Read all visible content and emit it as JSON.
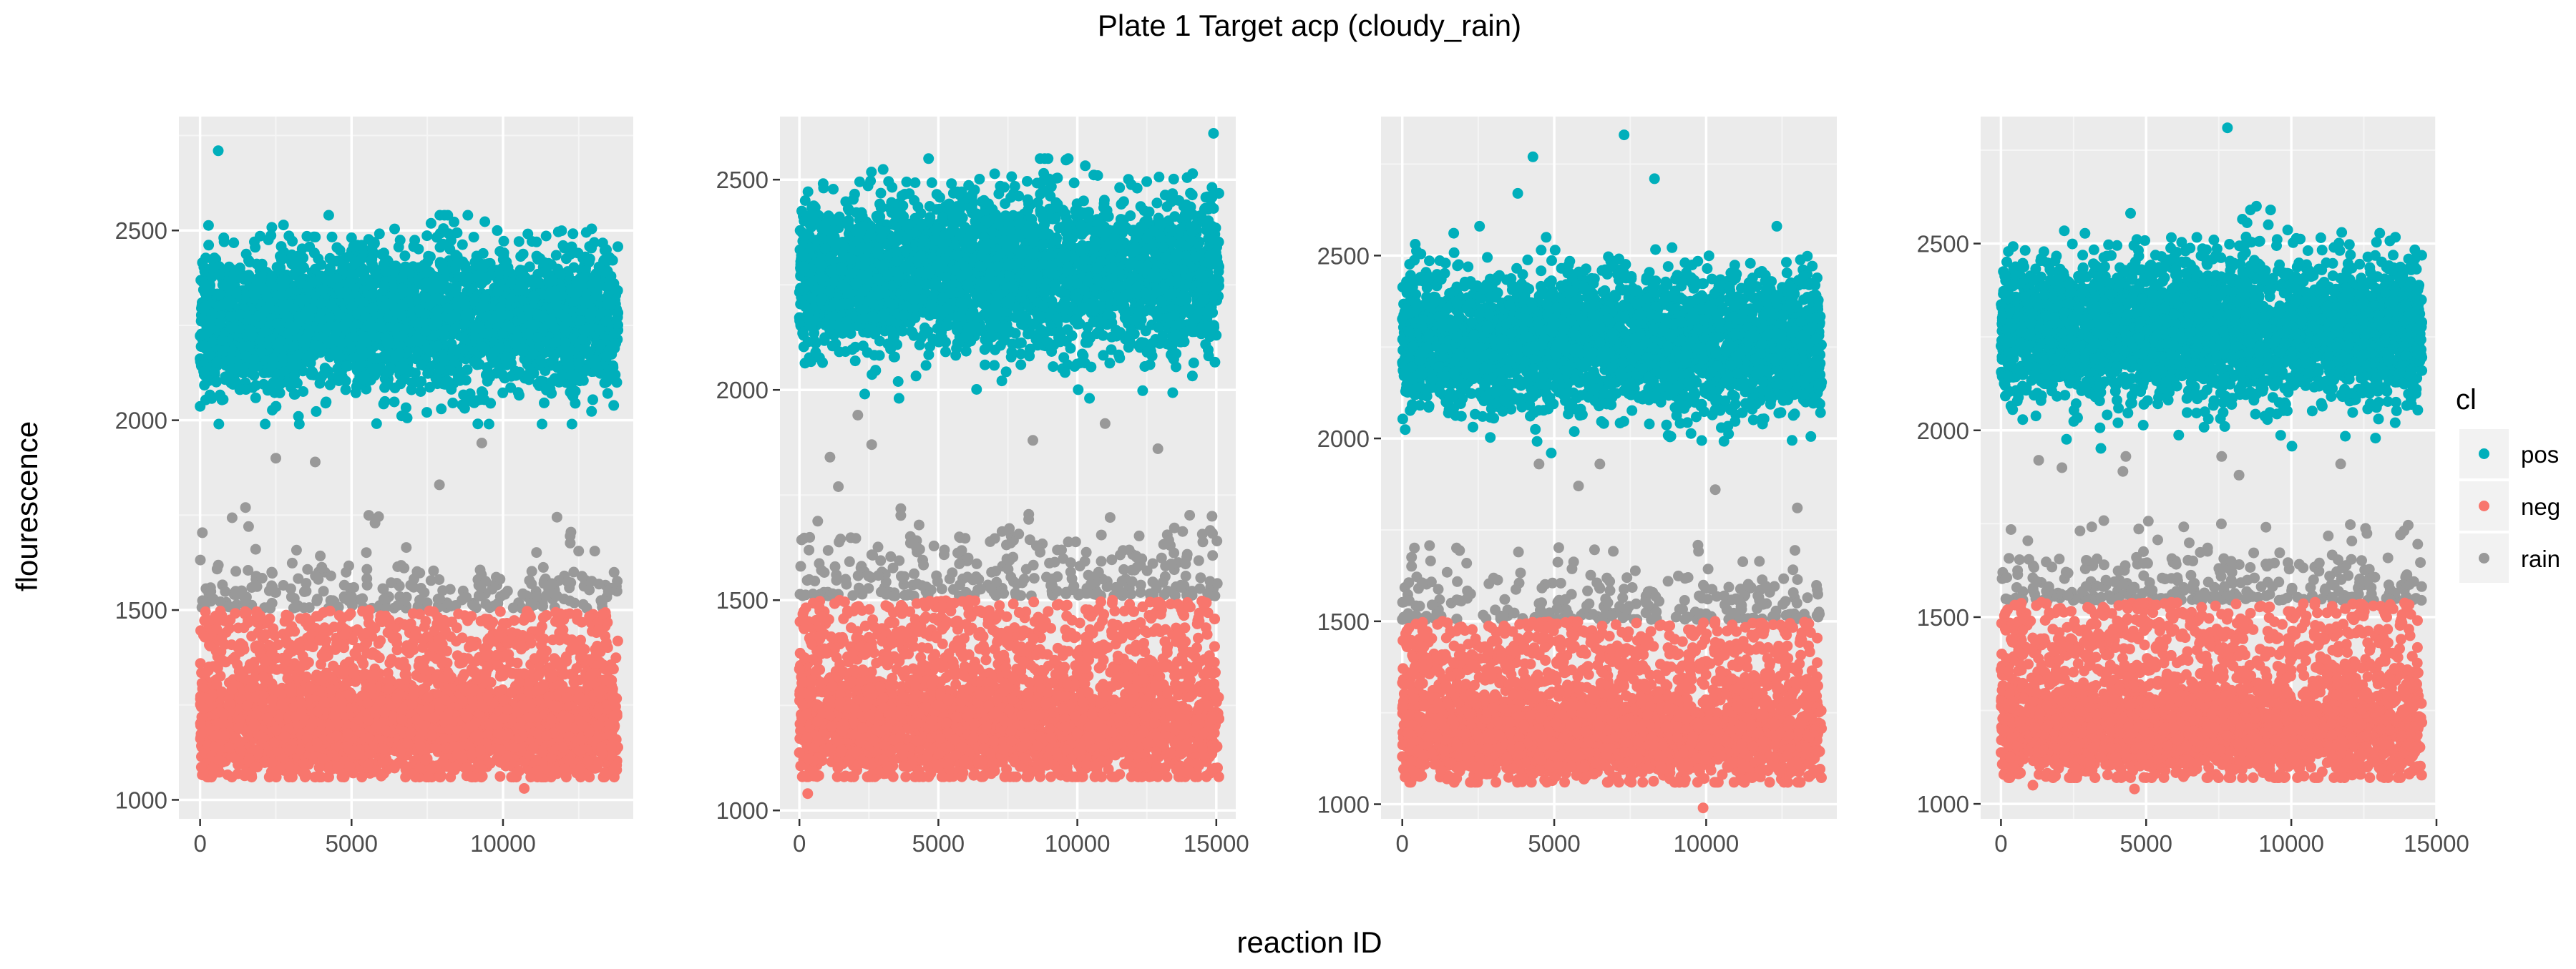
{
  "chart_data": {
    "type": "scatter",
    "title": "Plate 1 Target acp (cloudy_rain)",
    "xlabel": "reaction ID",
    "ylabel": "flourescence",
    "legend": {
      "title": "cl",
      "position": "right",
      "entries": [
        {
          "label": "pos",
          "color": "#00AFBB"
        },
        {
          "label": "neg",
          "color": "#F8766D"
        },
        {
          "label": "rain",
          "color": "#999999"
        }
      ]
    },
    "grid": true,
    "panels": [
      {
        "xlim": [
          -700,
          14300
        ],
        "ylim": [
          950,
          2800
        ],
        "xticks": [
          0,
          5000,
          10000
        ],
        "yticks": [
          1000,
          1500,
          2000,
          2500
        ],
        "n_reactions": 13800,
        "clusters": {
          "pos": {
            "n": 3200,
            "center": 2265,
            "band": [
              2110,
              2420
            ],
            "tail": [
              1990,
              2540
            ]
          },
          "neg": {
            "n": 3200,
            "center": 1190,
            "band": [
              1080,
              1300
            ],
            "top": 1500,
            "bottom": 1060
          },
          "rain": {
            "n": 260,
            "band": [
              1505,
              1620
            ],
            "tail_top": 1760
          }
        },
        "outliers": [
          {
            "cl": "pos",
            "x": 600,
            "y": 2710
          },
          {
            "cl": "rain",
            "x": 1600,
            "y": 1720
          },
          {
            "cl": "rain",
            "x": 1500,
            "y": 1770
          },
          {
            "cl": "rain",
            "x": 2500,
            "y": 1900
          },
          {
            "cl": "rain",
            "x": 3800,
            "y": 1890
          },
          {
            "cl": "rain",
            "x": 7900,
            "y": 1830
          },
          {
            "cl": "rain",
            "x": 9300,
            "y": 1940
          },
          {
            "cl": "neg",
            "x": 10700,
            "y": 1030
          }
        ]
      },
      {
        "xlim": [
          -700,
          15700
        ],
        "ylim": [
          980,
          2650
        ],
        "xticks": [
          0,
          5000,
          10000,
          15000
        ],
        "yticks": [
          1000,
          1500,
          2000,
          2500
        ],
        "n_reactions": 15100,
        "clusters": {
          "pos": {
            "n": 3200,
            "center": 2275,
            "band": [
              2120,
              2430
            ],
            "tail": [
              1980,
              2550
            ]
          },
          "neg": {
            "n": 3200,
            "center": 1200,
            "band": [
              1100,
              1320
            ],
            "top": 1500,
            "bottom": 1080
          },
          "rain": {
            "n": 300,
            "band": [
              1510,
              1650
            ],
            "tail_top": 1720
          }
        },
        "outliers": [
          {
            "cl": "pos",
            "x": 14900,
            "y": 2610
          },
          {
            "cl": "rain",
            "x": 1100,
            "y": 1840
          },
          {
            "cl": "rain",
            "x": 1400,
            "y": 1770
          },
          {
            "cl": "rain",
            "x": 2100,
            "y": 1940
          },
          {
            "cl": "rain",
            "x": 2600,
            "y": 1870
          },
          {
            "cl": "rain",
            "x": 8400,
            "y": 1880
          },
          {
            "cl": "rain",
            "x": 11000,
            "y": 1920
          },
          {
            "cl": "rain",
            "x": 12900,
            "y": 1860
          },
          {
            "cl": "neg",
            "x": 300,
            "y": 1040
          }
        ]
      },
      {
        "xlim": [
          -700,
          14300
        ],
        "ylim": [
          960,
          2880
        ],
        "xticks": [
          0,
          5000,
          10000
        ],
        "yticks": [
          1000,
          1500,
          2000,
          2500
        ],
        "n_reactions": 13800,
        "clusters": {
          "pos": {
            "n": 3200,
            "center": 2260,
            "band": [
              2110,
              2420
            ],
            "tail": [
              1960,
              2580
            ]
          },
          "neg": {
            "n": 3200,
            "center": 1190,
            "band": [
              1090,
              1300
            ],
            "top": 1500,
            "bottom": 1060
          },
          "rain": {
            "n": 260,
            "band": [
              1505,
              1620
            ],
            "tail_top": 1710
          }
        },
        "outliers": [
          {
            "cl": "pos",
            "x": 4300,
            "y": 2770
          },
          {
            "cl": "pos",
            "x": 7300,
            "y": 2830
          },
          {
            "cl": "pos",
            "x": 8300,
            "y": 2710
          },
          {
            "cl": "pos",
            "x": 3800,
            "y": 2670
          },
          {
            "cl": "rain",
            "x": 4500,
            "y": 1930
          },
          {
            "cl": "rain",
            "x": 5800,
            "y": 1870
          },
          {
            "cl": "rain",
            "x": 6500,
            "y": 1930
          },
          {
            "cl": "rain",
            "x": 10300,
            "y": 1860
          },
          {
            "cl": "rain",
            "x": 13000,
            "y": 1810
          },
          {
            "cl": "neg",
            "x": 9900,
            "y": 990
          }
        ]
      },
      {
        "xlim": [
          -700,
          15000
        ],
        "ylim": [
          960,
          2840
        ],
        "xticks": [
          0,
          5000,
          10000,
          15000
        ],
        "yticks": [
          1000,
          1500,
          2000,
          2500
        ],
        "n_reactions": 14500,
        "clusters": {
          "pos": {
            "n": 3200,
            "center": 2270,
            "band": [
              2110,
              2430
            ],
            "tail": [
              1950,
              2590
            ]
          },
          "neg": {
            "n": 3200,
            "center": 1200,
            "band": [
              1100,
              1320
            ],
            "top": 1540,
            "bottom": 1070
          },
          "rain": {
            "n": 300,
            "band": [
              1545,
              1660
            ],
            "tail_top": 1760
          }
        },
        "outliers": [
          {
            "cl": "pos",
            "x": 7800,
            "y": 2810
          },
          {
            "cl": "pos",
            "x": 8800,
            "y": 2600
          },
          {
            "cl": "rain",
            "x": 1300,
            "y": 1920
          },
          {
            "cl": "rain",
            "x": 2100,
            "y": 1900
          },
          {
            "cl": "rain",
            "x": 4200,
            "y": 1890
          },
          {
            "cl": "rain",
            "x": 4300,
            "y": 1930
          },
          {
            "cl": "rain",
            "x": 7600,
            "y": 1930
          },
          {
            "cl": "rain",
            "x": 8200,
            "y": 1880
          },
          {
            "cl": "rain",
            "x": 11700,
            "y": 1910
          },
          {
            "cl": "neg",
            "x": 4600,
            "y": 1040
          },
          {
            "cl": "neg",
            "x": 1100,
            "y": 1050
          }
        ]
      }
    ]
  }
}
